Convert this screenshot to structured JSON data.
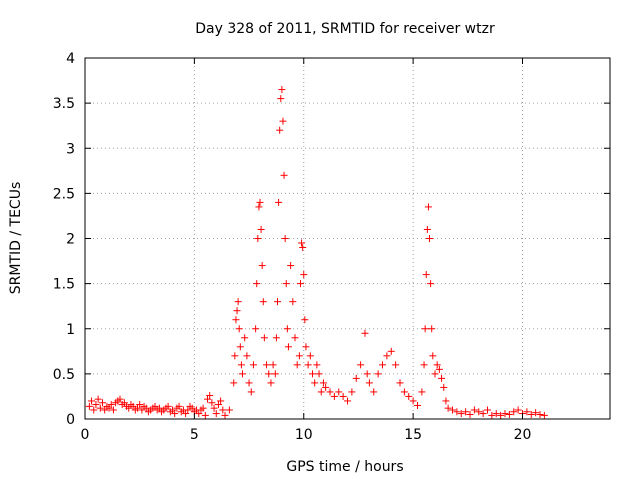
{
  "chart_data": {
    "type": "scatter",
    "title": "Day 328 of 2011, SRMTID for receiver wtzr",
    "xlabel": "GPS time / hours",
    "ylabel": "SRMTID / TECUs",
    "xlim": [
      0,
      24
    ],
    "ylim": [
      0,
      4
    ],
    "x_ticks": [
      0,
      5,
      10,
      15,
      20
    ],
    "y_ticks": [
      0,
      0.5,
      1,
      1.5,
      2,
      2.5,
      3,
      3.5,
      4
    ],
    "x_tick_labels": [
      "0",
      "5",
      "10",
      "15",
      "20"
    ],
    "y_tick_labels": [
      "0",
      "0.5",
      "1",
      "1.5",
      "2",
      "2.5",
      "3",
      "3.5",
      "4"
    ],
    "grid": true,
    "marker": "+",
    "color": "#ff0000",
    "series": [
      {
        "name": "SRMTID",
        "points": [
          [
            0.2,
            0.14
          ],
          [
            0.3,
            0.2
          ],
          [
            0.4,
            0.1
          ],
          [
            0.5,
            0.16
          ],
          [
            0.6,
            0.22
          ],
          [
            0.7,
            0.12
          ],
          [
            0.8,
            0.18
          ],
          [
            0.9,
            0.1
          ],
          [
            1.0,
            0.14
          ],
          [
            1.1,
            0.12
          ],
          [
            1.2,
            0.16
          ],
          [
            1.3,
            0.1
          ],
          [
            1.4,
            0.18
          ],
          [
            1.5,
            0.2
          ],
          [
            1.6,
            0.22
          ],
          [
            1.7,
            0.16
          ],
          [
            1.8,
            0.18
          ],
          [
            1.9,
            0.14
          ],
          [
            2.0,
            0.12
          ],
          [
            2.1,
            0.16
          ],
          [
            2.2,
            0.14
          ],
          [
            2.3,
            0.1
          ],
          [
            2.4,
            0.12
          ],
          [
            2.5,
            0.16
          ],
          [
            2.6,
            0.1
          ],
          [
            2.7,
            0.14
          ],
          [
            2.8,
            0.12
          ],
          [
            2.9,
            0.08
          ],
          [
            3.0,
            0.1
          ],
          [
            3.1,
            0.12
          ],
          [
            3.2,
            0.14
          ],
          [
            3.3,
            0.1
          ],
          [
            3.4,
            0.12
          ],
          [
            3.5,
            0.08
          ],
          [
            3.6,
            0.1
          ],
          [
            3.7,
            0.12
          ],
          [
            3.8,
            0.14
          ],
          [
            3.9,
            0.08
          ],
          [
            4.0,
            0.1
          ],
          [
            4.1,
            0.06
          ],
          [
            4.2,
            0.12
          ],
          [
            4.3,
            0.14
          ],
          [
            4.4,
            0.08
          ],
          [
            4.5,
            0.1
          ],
          [
            4.6,
            0.06
          ],
          [
            4.7,
            0.1
          ],
          [
            4.8,
            0.14
          ],
          [
            4.9,
            0.12
          ],
          [
            5.0,
            0.08
          ],
          [
            5.1,
            0.1
          ],
          [
            5.2,
            0.06
          ],
          [
            5.3,
            0.1
          ],
          [
            5.4,
            0.12
          ],
          [
            5.5,
            0.04
          ],
          [
            5.6,
            0.22
          ],
          [
            5.7,
            0.26
          ],
          [
            5.8,
            0.18
          ],
          [
            5.9,
            0.12
          ],
          [
            6.0,
            0.06
          ],
          [
            6.1,
            0.16
          ],
          [
            6.2,
            0.2
          ],
          [
            6.3,
            0.1
          ],
          [
            6.4,
            0.04
          ],
          [
            6.6,
            0.1
          ],
          [
            6.8,
            0.4
          ],
          [
            6.85,
            0.7
          ],
          [
            6.9,
            1.1
          ],
          [
            6.95,
            1.2
          ],
          [
            7.0,
            1.3
          ],
          [
            7.05,
            1.0
          ],
          [
            7.1,
            0.8
          ],
          [
            7.15,
            0.6
          ],
          [
            7.2,
            0.5
          ],
          [
            7.3,
            0.9
          ],
          [
            7.4,
            0.7
          ],
          [
            7.5,
            0.4
          ],
          [
            7.6,
            0.3
          ],
          [
            7.7,
            0.6
          ],
          [
            7.8,
            1.0
          ],
          [
            7.85,
            1.5
          ],
          [
            7.9,
            2.0
          ],
          [
            7.95,
            2.35
          ],
          [
            8.0,
            2.4
          ],
          [
            8.05,
            2.1
          ],
          [
            8.1,
            1.7
          ],
          [
            8.15,
            1.3
          ],
          [
            8.2,
            0.9
          ],
          [
            8.3,
            0.6
          ],
          [
            8.4,
            0.5
          ],
          [
            8.5,
            0.4
          ],
          [
            8.6,
            0.6
          ],
          [
            8.7,
            0.5
          ],
          [
            8.75,
            0.9
          ],
          [
            8.8,
            1.3
          ],
          [
            8.85,
            2.4
          ],
          [
            8.9,
            3.2
          ],
          [
            8.95,
            3.55
          ],
          [
            9.0,
            3.65
          ],
          [
            9.05,
            3.3
          ],
          [
            9.1,
            2.7
          ],
          [
            9.15,
            2.0
          ],
          [
            9.2,
            1.5
          ],
          [
            9.25,
            1.0
          ],
          [
            9.3,
            0.8
          ],
          [
            9.4,
            1.7
          ],
          [
            9.5,
            1.3
          ],
          [
            9.6,
            0.9
          ],
          [
            9.7,
            0.6
          ],
          [
            9.8,
            0.7
          ],
          [
            9.85,
            1.5
          ],
          [
            9.9,
            1.95
          ],
          [
            9.95,
            1.9
          ],
          [
            10.0,
            1.6
          ],
          [
            10.05,
            1.1
          ],
          [
            10.1,
            0.8
          ],
          [
            10.2,
            0.6
          ],
          [
            10.3,
            0.7
          ],
          [
            10.4,
            0.5
          ],
          [
            10.5,
            0.4
          ],
          [
            10.6,
            0.6
          ],
          [
            10.7,
            0.5
          ],
          [
            10.8,
            0.3
          ],
          [
            10.9,
            0.4
          ],
          [
            11.0,
            0.35
          ],
          [
            11.2,
            0.3
          ],
          [
            11.4,
            0.25
          ],
          [
            11.6,
            0.3
          ],
          [
            11.8,
            0.25
          ],
          [
            12.0,
            0.2
          ],
          [
            12.2,
            0.3
          ],
          [
            12.4,
            0.45
          ],
          [
            12.6,
            0.6
          ],
          [
            12.8,
            0.95
          ],
          [
            12.9,
            0.5
          ],
          [
            13.0,
            0.4
          ],
          [
            13.2,
            0.3
          ],
          [
            13.4,
            0.5
          ],
          [
            13.6,
            0.6
          ],
          [
            13.8,
            0.7
          ],
          [
            14.0,
            0.75
          ],
          [
            14.2,
            0.6
          ],
          [
            14.4,
            0.4
          ],
          [
            14.6,
            0.3
          ],
          [
            14.8,
            0.25
          ],
          [
            15.0,
            0.2
          ],
          [
            15.2,
            0.15
          ],
          [
            15.4,
            0.3
          ],
          [
            15.5,
            0.6
          ],
          [
            15.55,
            1.0
          ],
          [
            15.6,
            1.6
          ],
          [
            15.65,
            2.1
          ],
          [
            15.7,
            2.35
          ],
          [
            15.75,
            2.0
          ],
          [
            15.8,
            1.5
          ],
          [
            15.85,
            1.0
          ],
          [
            15.9,
            0.7
          ],
          [
            16.0,
            0.5
          ],
          [
            16.1,
            0.6
          ],
          [
            16.2,
            0.55
          ],
          [
            16.3,
            0.45
          ],
          [
            16.4,
            0.35
          ],
          [
            16.5,
            0.2
          ],
          [
            16.6,
            0.12
          ],
          [
            16.8,
            0.1
          ],
          [
            17.0,
            0.08
          ],
          [
            17.2,
            0.06
          ],
          [
            17.4,
            0.08
          ],
          [
            17.6,
            0.05
          ],
          [
            17.8,
            0.1
          ],
          [
            18.0,
            0.08
          ],
          [
            18.2,
            0.06
          ],
          [
            18.4,
            0.1
          ],
          [
            18.6,
            0.04
          ],
          [
            18.8,
            0.06
          ],
          [
            19.0,
            0.04
          ],
          [
            19.2,
            0.06
          ],
          [
            19.4,
            0.05
          ],
          [
            19.6,
            0.08
          ],
          [
            19.8,
            0.1
          ],
          [
            20.0,
            0.06
          ],
          [
            20.2,
            0.08
          ],
          [
            20.4,
            0.05
          ],
          [
            20.6,
            0.07
          ],
          [
            20.8,
            0.05
          ],
          [
            21.0,
            0.04
          ]
        ]
      }
    ]
  }
}
